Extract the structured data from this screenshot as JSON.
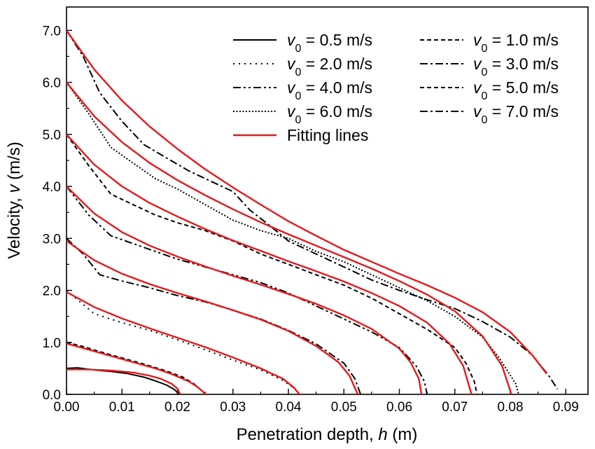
{
  "chart_data": {
    "type": "line",
    "xlabel": {
      "prefix": "Penetration depth, ",
      "var": "h",
      "suffix": " (m)"
    },
    "ylabel": {
      "prefix": "Velocity, ",
      "var": "v",
      "suffix": " (m/s)"
    },
    "xlim": [
      0,
      0.094
    ],
    "ylim": [
      0,
      7.45
    ],
    "xticks": [
      "0.00",
      "0.01",
      "0.02",
      "0.03",
      "0.04",
      "0.05",
      "0.06",
      "0.07",
      "0.08",
      "0.09"
    ],
    "xtick_values": [
      0,
      0.01,
      0.02,
      0.03,
      0.04,
      0.05,
      0.06,
      0.07,
      0.08,
      0.09
    ],
    "yticks": [
      "0.0",
      "1.0",
      "2.0",
      "3.0",
      "4.0",
      "5.0",
      "6.0",
      "7.0"
    ],
    "ytick_values": [
      0,
      1,
      2,
      3,
      4,
      5,
      6,
      7
    ],
    "grid": false,
    "legend_placement": "top-right",
    "legend_sym": "v",
    "legend_sub": "0",
    "legend_eq": " = ",
    "fit_color": "#e31a1c",
    "series": [
      {
        "name": "0.5 m/s",
        "style": "solid",
        "x": [
          0,
          0.002,
          0.005,
          0.008,
          0.011,
          0.014,
          0.016,
          0.018,
          0.0195,
          0.0203
        ],
        "y": [
          0.5,
          0.51,
          0.47,
          0.44,
          0.4,
          0.33,
          0.26,
          0.18,
          0.09,
          0
        ]
      },
      {
        "name": "1.0 m/s",
        "style": "dash",
        "x": [
          0,
          0.003,
          0.006,
          0.01,
          0.014,
          0.018,
          0.021,
          0.023,
          0.0243,
          0.025
        ],
        "y": [
          1.0,
          0.92,
          0.82,
          0.7,
          0.58,
          0.45,
          0.33,
          0.2,
          0.08,
          0
        ]
      },
      {
        "name": "2.0 m/s",
        "style": "dot",
        "x": [
          0,
          0.002,
          0.005,
          0.01,
          0.015,
          0.02,
          0.025,
          0.03,
          0.035,
          0.039,
          0.041,
          0.042
        ],
        "y": [
          2.0,
          1.82,
          1.55,
          1.38,
          1.23,
          1.05,
          0.86,
          0.66,
          0.47,
          0.27,
          0.12,
          0
        ]
      },
      {
        "name": "3.0 m/s",
        "style": "dashdot",
        "x": [
          0,
          0.003,
          0.006,
          0.01,
          0.015,
          0.02,
          0.025,
          0.03,
          0.035,
          0.04,
          0.045,
          0.05,
          0.052,
          0.053
        ],
        "y": [
          3.0,
          2.7,
          2.3,
          2.18,
          2.05,
          1.9,
          1.78,
          1.62,
          1.45,
          1.23,
          0.97,
          0.6,
          0.3,
          0
        ]
      },
      {
        "name": "4.0 m/s",
        "style": "dashdotdot",
        "x": [
          0,
          0.004,
          0.008,
          0.012,
          0.016,
          0.02,
          0.025,
          0.03,
          0.035,
          0.04,
          0.045,
          0.05,
          0.055,
          0.06,
          0.063,
          0.0645,
          0.065
        ],
        "y": [
          4.0,
          3.45,
          3.05,
          2.9,
          2.75,
          2.6,
          2.45,
          2.3,
          2.15,
          1.95,
          1.7,
          1.45,
          1.2,
          0.9,
          0.55,
          0.25,
          0
        ]
      },
      {
        "name": "5.0 m/s",
        "style": "dash",
        "x": [
          0,
          0.004,
          0.008,
          0.012,
          0.016,
          0.02,
          0.025,
          0.03,
          0.035,
          0.04,
          0.045,
          0.05,
          0.055,
          0.06,
          0.065,
          0.07,
          0.072,
          0.0735,
          0.074
        ],
        "y": [
          5.0,
          4.4,
          3.85,
          3.65,
          3.45,
          3.3,
          3.15,
          2.95,
          2.7,
          2.5,
          2.3,
          2.1,
          1.85,
          1.55,
          1.25,
          0.9,
          0.6,
          0.25,
          0
        ]
      },
      {
        "name": "6.0 m/s",
        "style": "dotdense",
        "x": [
          0,
          0.004,
          0.008,
          0.012,
          0.016,
          0.02,
          0.025,
          0.03,
          0.035,
          0.04,
          0.045,
          0.05,
          0.055,
          0.06,
          0.065,
          0.07,
          0.075,
          0.078,
          0.081,
          0.0815
        ],
        "y": [
          6.0,
          5.4,
          4.75,
          4.45,
          4.15,
          3.95,
          3.65,
          3.35,
          3.15,
          3.0,
          2.75,
          2.55,
          2.3,
          2.05,
          1.8,
          1.5,
          1.1,
          0.7,
          0.2,
          0
        ]
      },
      {
        "name": "7.0 m/s",
        "style": "dashdot",
        "x": [
          0,
          0.003,
          0.006,
          0.01,
          0.014,
          0.018,
          0.022,
          0.026,
          0.03,
          0.033,
          0.036,
          0.04,
          0.045,
          0.05,
          0.055,
          0.06,
          0.065,
          0.07,
          0.075,
          0.08,
          0.084,
          0.087,
          0.0885
        ],
        "y": [
          7.0,
          6.5,
          5.8,
          5.25,
          4.8,
          4.55,
          4.3,
          4.1,
          3.9,
          3.55,
          3.3,
          2.95,
          2.7,
          2.45,
          2.2,
          2.0,
          1.82,
          1.65,
          1.4,
          1.1,
          0.75,
          0.35,
          0.1
        ]
      }
    ],
    "fitting_lines": {
      "name": "Fitting lines",
      "curves": [
        {
          "x": [
            0,
            0.004,
            0.008,
            0.012,
            0.015,
            0.017,
            0.019,
            0.02,
            0.0205
          ],
          "y": [
            0.48,
            0.48,
            0.46,
            0.42,
            0.36,
            0.3,
            0.2,
            0.11,
            0
          ]
        },
        {
          "x": [
            0,
            0.004,
            0.008,
            0.012,
            0.016,
            0.019,
            0.022,
            0.0235,
            0.0245,
            0.025
          ],
          "y": [
            0.98,
            0.86,
            0.74,
            0.62,
            0.5,
            0.39,
            0.25,
            0.15,
            0.06,
            0
          ]
        },
        {
          "x": [
            0,
            0.005,
            0.01,
            0.015,
            0.02,
            0.025,
            0.03,
            0.035,
            0.039,
            0.041,
            0.042
          ],
          "y": [
            1.97,
            1.68,
            1.46,
            1.27,
            1.09,
            0.91,
            0.71,
            0.5,
            0.3,
            0.13,
            0
          ]
        },
        {
          "x": [
            0,
            0.005,
            0.01,
            0.015,
            0.02,
            0.025,
            0.03,
            0.035,
            0.04,
            0.045,
            0.049,
            0.051,
            0.0525
          ],
          "y": [
            2.95,
            2.58,
            2.32,
            2.12,
            1.95,
            1.79,
            1.62,
            1.44,
            1.22,
            0.93,
            0.62,
            0.36,
            0
          ]
        },
        {
          "x": [
            0,
            0.005,
            0.01,
            0.015,
            0.02,
            0.025,
            0.03,
            0.035,
            0.04,
            0.045,
            0.05,
            0.055,
            0.06,
            0.062,
            0.0635,
            0.064
          ],
          "y": [
            4.0,
            3.48,
            3.12,
            2.86,
            2.65,
            2.46,
            2.28,
            2.11,
            1.93,
            1.74,
            1.52,
            1.26,
            0.88,
            0.62,
            0.3,
            0
          ]
        },
        {
          "x": [
            0,
            0.005,
            0.01,
            0.015,
            0.02,
            0.025,
            0.03,
            0.035,
            0.04,
            0.045,
            0.05,
            0.055,
            0.06,
            0.065,
            0.069,
            0.0715,
            0.073
          ],
          "y": [
            5.0,
            4.42,
            4.0,
            3.68,
            3.42,
            3.18,
            2.96,
            2.76,
            2.56,
            2.37,
            2.17,
            1.95,
            1.7,
            1.38,
            0.98,
            0.55,
            0
          ]
        },
        {
          "x": [
            0,
            0.005,
            0.01,
            0.015,
            0.02,
            0.025,
            0.03,
            0.035,
            0.04,
            0.045,
            0.05,
            0.055,
            0.06,
            0.065,
            0.07,
            0.075,
            0.0785,
            0.0802
          ],
          "y": [
            6.0,
            5.35,
            4.85,
            4.45,
            4.12,
            3.83,
            3.56,
            3.31,
            3.08,
            2.86,
            2.64,
            2.42,
            2.18,
            1.92,
            1.6,
            1.12,
            0.55,
            0
          ]
        },
        {
          "x": [
            0,
            0.005,
            0.01,
            0.015,
            0.02,
            0.025,
            0.03,
            0.035,
            0.04,
            0.045,
            0.05,
            0.055,
            0.06,
            0.065,
            0.07,
            0.075,
            0.08,
            0.084,
            0.0865
          ],
          "y": [
            7.0,
            6.25,
            5.65,
            5.15,
            4.72,
            4.33,
            3.98,
            3.65,
            3.33,
            3.05,
            2.78,
            2.55,
            2.32,
            2.1,
            1.86,
            1.58,
            1.2,
            0.75,
            0.4
          ]
        }
      ]
    }
  }
}
